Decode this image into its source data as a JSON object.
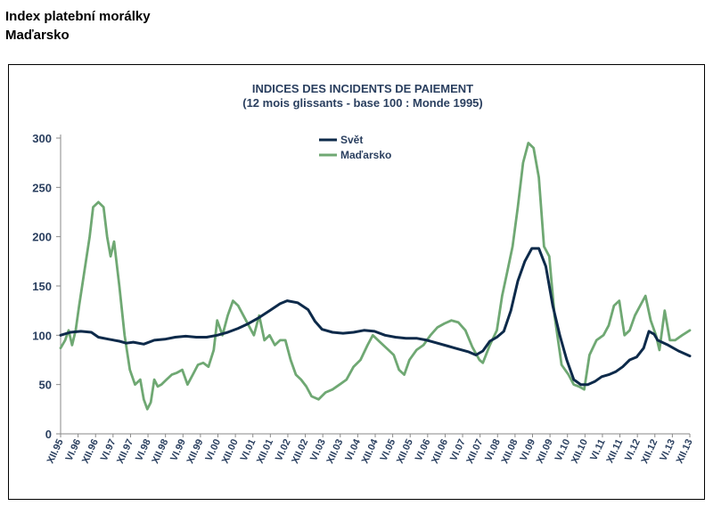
{
  "header": {
    "title_line1": "Index platební morálky",
    "title_line2": "Maďarsko"
  },
  "chart_data": {
    "type": "line",
    "title": "INDICES DES INCIDENTS DE PAIEMENT",
    "subtitle": "(12 mois glissants - base 100 : Monde 1995)",
    "ylim": [
      0,
      300
    ],
    "yticks": [
      0,
      50,
      100,
      150,
      200,
      250,
      300
    ],
    "x_range": [
      1995.92,
      2013.92
    ],
    "grid": false,
    "legend_position": "top-center",
    "xtick_labels": [
      {
        "label": "XII.95",
        "t": 1995.92
      },
      {
        "label": "VI.96",
        "t": 1996.42
      },
      {
        "label": "XII.96",
        "t": 1996.92
      },
      {
        "label": "VI.97",
        "t": 1997.42
      },
      {
        "label": "XII.97",
        "t": 1997.92
      },
      {
        "label": "VI.98",
        "t": 1998.42
      },
      {
        "label": "XII.98",
        "t": 1998.92
      },
      {
        "label": "VI.99",
        "t": 1999.42
      },
      {
        "label": "XII.99",
        "t": 1999.92
      },
      {
        "label": "VI.00",
        "t": 2000.42
      },
      {
        "label": "XII.00",
        "t": 2000.92
      },
      {
        "label": "VI.01",
        "t": 2001.42
      },
      {
        "label": "XII.01",
        "t": 2001.92
      },
      {
        "label": "VI.02",
        "t": 2002.42
      },
      {
        "label": "XII.02",
        "t": 2002.92
      },
      {
        "label": "VI.03",
        "t": 2003.42
      },
      {
        "label": "XII.03",
        "t": 2003.92
      },
      {
        "label": "VI.04",
        "t": 2004.42
      },
      {
        "label": "XII.04",
        "t": 2004.92
      },
      {
        "label": "VI.05",
        "t": 2005.42
      },
      {
        "label": "XII.05",
        "t": 2005.92
      },
      {
        "label": "VI.06",
        "t": 2006.42
      },
      {
        "label": "XII.06",
        "t": 2006.92
      },
      {
        "label": "VI.07",
        "t": 2007.42
      },
      {
        "label": "XII.07",
        "t": 2007.92
      },
      {
        "label": "VI.08",
        "t": 2008.42
      },
      {
        "label": "XII.08",
        "t": 2008.92
      },
      {
        "label": "VI.09",
        "t": 2009.42
      },
      {
        "label": "XII.09",
        "t": 2009.92
      },
      {
        "label": "VI.10",
        "t": 2010.42
      },
      {
        "label": "XII.10",
        "t": 2010.92
      },
      {
        "label": "VI.11",
        "t": 2011.42
      },
      {
        "label": "XII.11",
        "t": 2011.92
      },
      {
        "label": "VI.12",
        "t": 2012.42
      },
      {
        "label": "XII.12",
        "t": 2012.92
      },
      {
        "label": "VI.13",
        "t": 2013.42
      },
      {
        "label": "XII.13",
        "t": 2013.92
      }
    ],
    "series": [
      {
        "name": "Svět",
        "color": "#0d2a4a",
        "points": [
          [
            1995.92,
            100
          ],
          [
            1996.2,
            103
          ],
          [
            1996.5,
            104
          ],
          [
            1996.8,
            103
          ],
          [
            1997.0,
            98
          ],
          [
            1997.3,
            96
          ],
          [
            1997.6,
            94
          ],
          [
            1997.8,
            92
          ],
          [
            1998.0,
            93
          ],
          [
            1998.3,
            91
          ],
          [
            1998.6,
            95
          ],
          [
            1998.9,
            96
          ],
          [
            1999.2,
            98
          ],
          [
            1999.5,
            99
          ],
          [
            1999.8,
            98
          ],
          [
            2000.1,
            98
          ],
          [
            2000.4,
            100
          ],
          [
            2000.7,
            103
          ],
          [
            2001.0,
            107
          ],
          [
            2001.3,
            112
          ],
          [
            2001.6,
            118
          ],
          [
            2001.9,
            125
          ],
          [
            2002.2,
            132
          ],
          [
            2002.4,
            135
          ],
          [
            2002.7,
            133
          ],
          [
            2003.0,
            126
          ],
          [
            2003.2,
            114
          ],
          [
            2003.4,
            106
          ],
          [
            2003.7,
            103
          ],
          [
            2004.0,
            102
          ],
          [
            2004.3,
            103
          ],
          [
            2004.6,
            105
          ],
          [
            2004.9,
            104
          ],
          [
            2005.2,
            100
          ],
          [
            2005.5,
            98
          ],
          [
            2005.8,
            97
          ],
          [
            2006.1,
            97
          ],
          [
            2006.4,
            95
          ],
          [
            2006.7,
            92
          ],
          [
            2007.0,
            89
          ],
          [
            2007.3,
            86
          ],
          [
            2007.6,
            83
          ],
          [
            2007.8,
            80
          ],
          [
            2008.0,
            84
          ],
          [
            2008.2,
            94
          ],
          [
            2008.4,
            98
          ],
          [
            2008.6,
            104
          ],
          [
            2008.8,
            125
          ],
          [
            2009.0,
            155
          ],
          [
            2009.2,
            175
          ],
          [
            2009.4,
            188
          ],
          [
            2009.6,
            188
          ],
          [
            2009.8,
            170
          ],
          [
            2010.0,
            130
          ],
          [
            2010.2,
            100
          ],
          [
            2010.4,
            75
          ],
          [
            2010.6,
            55
          ],
          [
            2010.8,
            50
          ],
          [
            2011.0,
            50
          ],
          [
            2011.2,
            53
          ],
          [
            2011.4,
            58
          ],
          [
            2011.6,
            60
          ],
          [
            2011.8,
            63
          ],
          [
            2012.0,
            68
          ],
          [
            2012.2,
            75
          ],
          [
            2012.4,
            78
          ],
          [
            2012.6,
            87
          ],
          [
            2012.75,
            104
          ],
          [
            2012.9,
            101
          ],
          [
            2013.0,
            95
          ],
          [
            2013.3,
            90
          ],
          [
            2013.6,
            84
          ],
          [
            2013.92,
            79
          ]
        ]
      },
      {
        "name": "Maďarsko",
        "color": "#6fa873",
        "points": [
          [
            1995.92,
            87
          ],
          [
            1996.05,
            95
          ],
          [
            1996.15,
            105
          ],
          [
            1996.25,
            90
          ],
          [
            1996.35,
            105
          ],
          [
            1996.45,
            130
          ],
          [
            1996.6,
            165
          ],
          [
            1996.75,
            200
          ],
          [
            1996.85,
            230
          ],
          [
            1997.0,
            235
          ],
          [
            1997.15,
            230
          ],
          [
            1997.25,
            200
          ],
          [
            1997.35,
            180
          ],
          [
            1997.45,
            195
          ],
          [
            1997.6,
            150
          ],
          [
            1997.75,
            100
          ],
          [
            1997.9,
            65
          ],
          [
            1998.05,
            50
          ],
          [
            1998.2,
            55
          ],
          [
            1998.3,
            35
          ],
          [
            1998.4,
            25
          ],
          [
            1998.5,
            32
          ],
          [
            1998.6,
            55
          ],
          [
            1998.7,
            48
          ],
          [
            1998.8,
            50
          ],
          [
            1998.95,
            55
          ],
          [
            1999.1,
            60
          ],
          [
            1999.25,
            62
          ],
          [
            1999.4,
            65
          ],
          [
            1999.55,
            50
          ],
          [
            1999.7,
            60
          ],
          [
            1999.85,
            70
          ],
          [
            2000.0,
            72
          ],
          [
            2000.15,
            68
          ],
          [
            2000.3,
            85
          ],
          [
            2000.4,
            115
          ],
          [
            2000.55,
            100
          ],
          [
            2000.7,
            120
          ],
          [
            2000.85,
            135
          ],
          [
            2001.0,
            130
          ],
          [
            2001.15,
            120
          ],
          [
            2001.3,
            110
          ],
          [
            2001.45,
            100
          ],
          [
            2001.6,
            120
          ],
          [
            2001.75,
            95
          ],
          [
            2001.9,
            100
          ],
          [
            2002.05,
            90
          ],
          [
            2002.2,
            95
          ],
          [
            2002.35,
            95
          ],
          [
            2002.5,
            75
          ],
          [
            2002.65,
            60
          ],
          [
            2002.8,
            55
          ],
          [
            2002.95,
            48
          ],
          [
            2003.1,
            38
          ],
          [
            2003.3,
            35
          ],
          [
            2003.5,
            42
          ],
          [
            2003.7,
            45
          ],
          [
            2003.9,
            50
          ],
          [
            2004.1,
            55
          ],
          [
            2004.3,
            68
          ],
          [
            2004.5,
            75
          ],
          [
            2004.7,
            90
          ],
          [
            2004.85,
            100
          ],
          [
            2005.0,
            95
          ],
          [
            2005.15,
            90
          ],
          [
            2005.3,
            85
          ],
          [
            2005.45,
            80
          ],
          [
            2005.6,
            65
          ],
          [
            2005.75,
            60
          ],
          [
            2005.9,
            75
          ],
          [
            2006.1,
            85
          ],
          [
            2006.3,
            90
          ],
          [
            2006.5,
            100
          ],
          [
            2006.7,
            108
          ],
          [
            2006.9,
            112
          ],
          [
            2007.1,
            115
          ],
          [
            2007.3,
            113
          ],
          [
            2007.5,
            105
          ],
          [
            2007.7,
            88
          ],
          [
            2007.9,
            75
          ],
          [
            2008.0,
            72
          ],
          [
            2008.2,
            90
          ],
          [
            2008.4,
            105
          ],
          [
            2008.55,
            140
          ],
          [
            2008.7,
            165
          ],
          [
            2008.85,
            190
          ],
          [
            2009.0,
            230
          ],
          [
            2009.15,
            275
          ],
          [
            2009.3,
            295
          ],
          [
            2009.45,
            290
          ],
          [
            2009.6,
            260
          ],
          [
            2009.75,
            190
          ],
          [
            2009.9,
            180
          ],
          [
            2010.05,
            120
          ],
          [
            2010.25,
            70
          ],
          [
            2010.45,
            60
          ],
          [
            2010.6,
            50
          ],
          [
            2010.75,
            48
          ],
          [
            2010.9,
            45
          ],
          [
            2011.05,
            80
          ],
          [
            2011.25,
            95
          ],
          [
            2011.45,
            100
          ],
          [
            2011.6,
            110
          ],
          [
            2011.75,
            130
          ],
          [
            2011.9,
            135
          ],
          [
            2012.05,
            100
          ],
          [
            2012.2,
            105
          ],
          [
            2012.35,
            120
          ],
          [
            2012.5,
            130
          ],
          [
            2012.65,
            140
          ],
          [
            2012.8,
            115
          ],
          [
            2012.95,
            100
          ],
          [
            2013.05,
            85
          ],
          [
            2013.2,
            125
          ],
          [
            2013.35,
            95
          ],
          [
            2013.5,
            95
          ],
          [
            2013.7,
            100
          ],
          [
            2013.92,
            105
          ]
        ]
      }
    ]
  }
}
